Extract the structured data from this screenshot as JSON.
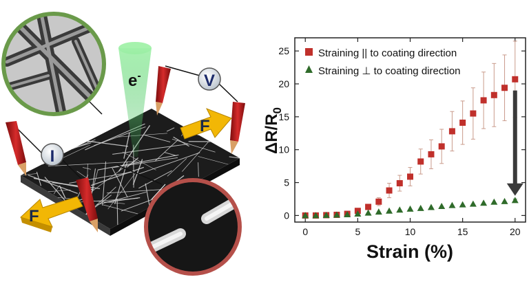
{
  "schematic": {
    "electron_label": "e",
    "electron_sup": "-",
    "voltmeter_label": "V",
    "current_label": "I",
    "force_label_right": "F",
    "force_label_left": "F"
  },
  "colors": {
    "parallel": "#c0302b",
    "perpendicular": "#2f6b2a",
    "arrow": "#3a3a3a",
    "force_arrow": "#f2b705",
    "probe": "#b81c1c",
    "tem_border": "#6a9a4a",
    "sem_border": "#b5504a"
  },
  "chart_data": {
    "type": "scatter",
    "xlabel": "Strain (%)",
    "ylabel": "ΔR/R",
    "ylabel_sub": "0",
    "xlim": [
      -1,
      21
    ],
    "ylim": [
      -1,
      27
    ],
    "xticks": [
      0,
      5,
      10,
      15,
      20
    ],
    "yticks": [
      0,
      5,
      10,
      15,
      20,
      25
    ],
    "grid": false,
    "legend_position": "top-left",
    "series": [
      {
        "name": "Straining || to coating direction",
        "marker": "square",
        "color": "#c0302b",
        "x": [
          0,
          1,
          2,
          3,
          4,
          5,
          6,
          7,
          8,
          9,
          10,
          11,
          12,
          13,
          14,
          15,
          16,
          17,
          18,
          19,
          20
        ],
        "y": [
          0,
          0,
          0.05,
          0.1,
          0.25,
          0.7,
          1.3,
          2.1,
          3.8,
          4.9,
          5.9,
          8.2,
          9.3,
          10.5,
          12.8,
          14.1,
          15.5,
          17.5,
          18.3,
          19.4,
          20.7
        ],
        "err": [
          0,
          0,
          0,
          0,
          0.1,
          0.3,
          0.4,
          0.6,
          1.1,
          1.2,
          1.4,
          1.9,
          2.2,
          2.6,
          3.0,
          3.3,
          3.9,
          4.3,
          4.8,
          5.0,
          5.8
        ]
      },
      {
        "name": "Straining ⊥ to coating direction",
        "marker": "triangle",
        "color": "#2f6b2a",
        "x": [
          0,
          1,
          2,
          3,
          4,
          5,
          6,
          7,
          8,
          9,
          10,
          11,
          12,
          13,
          14,
          15,
          16,
          17,
          18,
          19,
          20
        ],
        "y": [
          0,
          0,
          0.05,
          0.1,
          0.15,
          0.25,
          0.4,
          0.55,
          0.7,
          0.85,
          1.0,
          1.1,
          1.25,
          1.4,
          1.55,
          1.65,
          1.75,
          1.9,
          2.05,
          2.15,
          2.3
        ],
        "err": [
          0,
          0,
          0,
          0,
          0,
          0,
          0,
          0,
          0,
          0,
          0,
          0,
          0,
          0,
          0,
          0,
          0,
          0,
          0,
          0,
          0.2
        ]
      }
    ],
    "annotation": {
      "type": "down-arrow",
      "x": 20,
      "from_y": 19,
      "to_y": 3.2
    }
  }
}
